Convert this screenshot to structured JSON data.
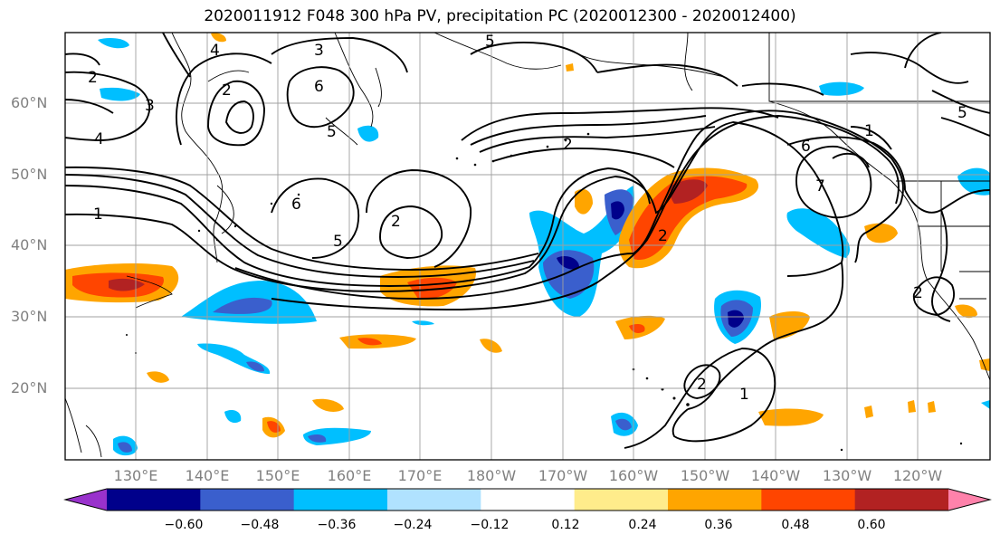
{
  "title": "2020011912 F048 300 hPa PV, precipitation PC (2020012300 - 2020012400)",
  "lat_labels": [
    "60°N",
    "50°N",
    "40°N",
    "30°N",
    "20°N"
  ],
  "lon_labels": [
    "130°E",
    "140°E",
    "150°E",
    "160°E",
    "170°E",
    "180°W",
    "170°W",
    "160°W",
    "150°W",
    "140°W",
    "130°W",
    "120°W"
  ],
  "colorbar": {
    "ticks": [
      "−0.60",
      "−0.48",
      "−0.36",
      "−0.24",
      "−0.12",
      "0.12",
      "0.24",
      "0.36",
      "0.48",
      "0.60"
    ],
    "colors": [
      "#9932CC",
      "#00008B",
      "#3A5FCD",
      "#00BFFF",
      "#B0E2FF",
      "#FFFFFF",
      "#FFEC8B",
      "#FFA500",
      "#FF4500",
      "#B22222",
      "#FF82AB"
    ]
  },
  "contour_labels": [
    "1",
    "2",
    "3",
    "4",
    "5",
    "6",
    "7"
  ]
}
